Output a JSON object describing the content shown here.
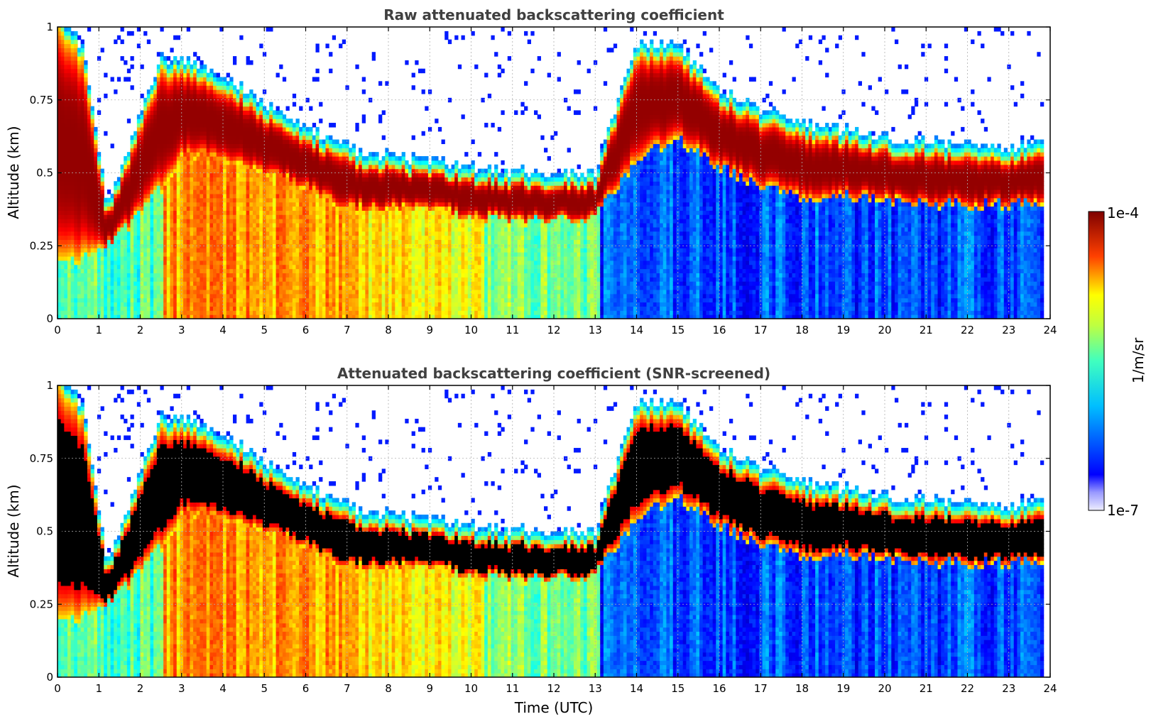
{
  "chart_data": [
    {
      "type": "heatmap",
      "title": "Raw attenuated backscattering coefficient",
      "xlabel": "",
      "ylabel": "Altitude (km)",
      "xlim": [
        0,
        24
      ],
      "ylim": [
        0,
        1
      ],
      "x_ticks": [
        "0",
        "1",
        "2",
        "3",
        "4",
        "5",
        "6",
        "7",
        "8",
        "9",
        "10",
        "11",
        "12",
        "13",
        "14",
        "15",
        "16",
        "17",
        "18",
        "19",
        "20",
        "21",
        "22",
        "23",
        "24"
      ],
      "y_ticks": [
        "0",
        "0.25",
        "0.5",
        "0.75",
        "1"
      ],
      "grid": true,
      "colorscale": "jet",
      "value_range": [
        1e-07,
        0.0001
      ],
      "cloud_base_km": [
        [
          0.0,
          0.22
        ],
        [
          0.6,
          0.2
        ],
        [
          1.2,
          0.25
        ],
        [
          1.6,
          0.3
        ],
        [
          2.5,
          0.45
        ],
        [
          3.0,
          0.55
        ],
        [
          4.0,
          0.55
        ],
        [
          5.0,
          0.5
        ],
        [
          6.0,
          0.45
        ],
        [
          7.0,
          0.38
        ],
        [
          8.0,
          0.38
        ],
        [
          9.0,
          0.38
        ],
        [
          10.0,
          0.35
        ],
        [
          11.0,
          0.34
        ],
        [
          12.0,
          0.34
        ],
        [
          13.0,
          0.35
        ],
        [
          14.0,
          0.55
        ],
        [
          15.0,
          0.62
        ],
        [
          16.0,
          0.52
        ],
        [
          17.0,
          0.46
        ],
        [
          18.0,
          0.42
        ],
        [
          19.0,
          0.42
        ],
        [
          20.0,
          0.41
        ],
        [
          21.0,
          0.4
        ],
        [
          22.0,
          0.39
        ],
        [
          23.0,
          0.39
        ],
        [
          23.8,
          0.4
        ]
      ],
      "cloud_top_km": [
        [
          0.0,
          1.0
        ],
        [
          0.6,
          0.9
        ],
        [
          1.2,
          0.36
        ],
        [
          1.6,
          0.5
        ],
        [
          2.5,
          0.85
        ],
        [
          3.0,
          0.85
        ],
        [
          4.0,
          0.8
        ],
        [
          5.0,
          0.7
        ],
        [
          6.0,
          0.62
        ],
        [
          7.0,
          0.55
        ],
        [
          8.0,
          0.52
        ],
        [
          9.0,
          0.5
        ],
        [
          10.0,
          0.48
        ],
        [
          11.0,
          0.47
        ],
        [
          12.0,
          0.46
        ],
        [
          13.0,
          0.46
        ],
        [
          14.0,
          0.9
        ],
        [
          15.0,
          0.9
        ],
        [
          16.0,
          0.75
        ],
        [
          17.0,
          0.68
        ],
        [
          18.0,
          0.63
        ],
        [
          19.0,
          0.61
        ],
        [
          20.0,
          0.58
        ],
        [
          21.0,
          0.57
        ],
        [
          22.0,
          0.55
        ],
        [
          23.0,
          0.55
        ],
        [
          23.8,
          0.56
        ]
      ]
    },
    {
      "type": "heatmap",
      "title": "Attenuated backscattering coefficient (SNR-screened)",
      "xlabel": "Time (UTC)",
      "ylabel": "Altitude (km)",
      "xlim": [
        0,
        24
      ],
      "ylim": [
        0,
        1
      ],
      "x_ticks": [
        "0",
        "1",
        "2",
        "3",
        "4",
        "5",
        "6",
        "7",
        "8",
        "9",
        "10",
        "11",
        "12",
        "13",
        "14",
        "15",
        "16",
        "17",
        "18",
        "19",
        "20",
        "21",
        "22",
        "23",
        "24"
      ],
      "y_ticks": [
        "0",
        "0.25",
        "0.5",
        "0.75",
        "1"
      ],
      "grid": true,
      "colorscale": "jet",
      "value_range": [
        1e-07,
        0.0001
      ],
      "saturated_color": "#000000"
    }
  ],
  "colorbar": {
    "label": "1/m/sr",
    "max_label": "1e-4",
    "min_label": "1e-7"
  },
  "colors": {
    "jet_low": "#00007f",
    "jet_mid": "#7fff7f",
    "jet_high": "#7f0000",
    "background": "#ffffff",
    "title": "#404040"
  }
}
